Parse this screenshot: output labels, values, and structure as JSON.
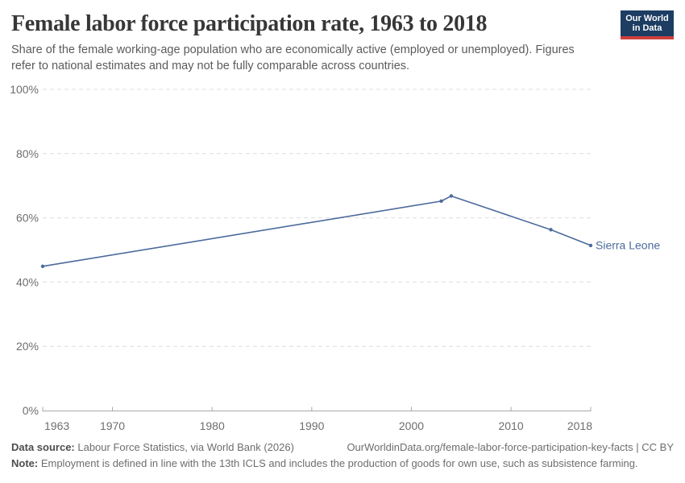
{
  "header": {
    "title": "Female labor force participation rate, 1963 to 2018",
    "subtitle": "Share of the female working-age population who are economically active (employed or unemployed). Figures refer to national estimates and may not be fully comparable across countries.",
    "logo": {
      "line1": "Our World",
      "line2": "in Data",
      "bg_color": "#1d3d63",
      "stripe_color": "#cf3e3e"
    }
  },
  "chart_data": {
    "type": "line",
    "title": "Female labor force participation rate, 1963 to 2018",
    "xlabel": "",
    "ylabel": "",
    "xlim": [
      1963,
      2018
    ],
    "ylim": [
      0,
      100
    ],
    "x_ticks": [
      1963,
      1970,
      1980,
      1990,
      2000,
      2010,
      2018
    ],
    "y_ticks": [
      0,
      20,
      40,
      60,
      80,
      100
    ],
    "y_tick_suffix": "%",
    "grid": "horizontal-dashed",
    "legend_position": "end-of-line-label",
    "series": [
      {
        "name": "Sierra Leone",
        "color": "#4C6A9C",
        "points": [
          {
            "x": 1963,
            "y": 44.9
          },
          {
            "x": 2003,
            "y": 65.2
          },
          {
            "x": 2004,
            "y": 66.8
          },
          {
            "x": 2014,
            "y": 56.3
          },
          {
            "x": 2018,
            "y": 51.4
          }
        ]
      }
    ],
    "colors": {
      "gridline": "#dedede",
      "axis": "#a9a9a9",
      "tick_label": "#6e6e6e"
    }
  },
  "footer": {
    "datasource_label": "Data source:",
    "datasource_text": " Labour Force Statistics, via World Bank (2026)",
    "link_text": "OurWorldinData.org/female-labor-force-participation-key-facts | CC BY",
    "note_label": "Note:",
    "note_text": " Employment is defined in line with the 13th ICLS and includes the production of goods for own use, such as subsistence farming."
  }
}
